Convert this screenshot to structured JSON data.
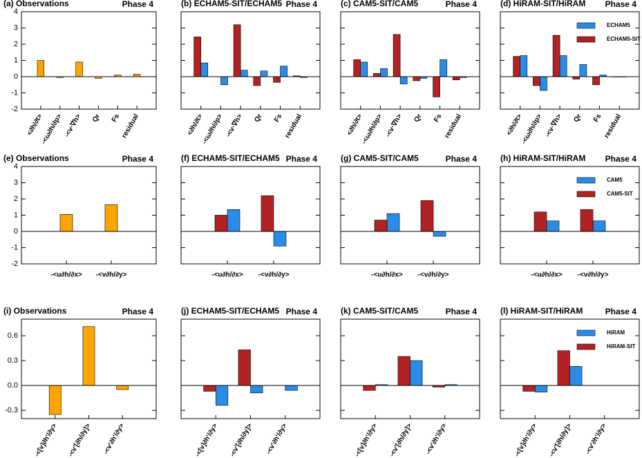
{
  "chart_data": [
    {
      "type": "bar",
      "title": "(a) Observations",
      "subtitle": "Phase 4",
      "categories": [
        "<∂h/∂t>",
        "-<ω∂h/∂p>",
        "-<v·∇h>",
        "Qr",
        "Fs",
        "residual"
      ],
      "series": [
        {
          "color": "#ffa500",
          "values": [
            1.0,
            -0.05,
            0.9,
            -0.1,
            0.1,
            0.15
          ]
        }
      ],
      "ylim": [
        -2,
        4
      ],
      "yticks": [
        -2,
        -1,
        0,
        1,
        2,
        3,
        4
      ]
    },
    {
      "type": "bar",
      "title": "(b) ECHAM5-SIT/ECHAM5",
      "subtitle": "Phase 4",
      "categories": [
        "<∂h/∂t>",
        "-<ω∂h/∂p>",
        "-<v·∇h>",
        "Qr",
        "Fs",
        "residual"
      ],
      "series": [
        {
          "color": "#2b8ce8",
          "values": [
            0.85,
            -0.5,
            0.4,
            0.35,
            0.65,
            -0.05
          ]
        },
        {
          "color": "#b22222",
          "values": [
            2.45,
            0.0,
            3.2,
            -0.55,
            -0.35,
            0.05
          ]
        }
      ],
      "ylim": [
        -2,
        4
      ]
    },
    {
      "type": "bar",
      "title": "(c) CAM5-SIT/CAM5",
      "subtitle": "Phase 4",
      "categories": [
        "<∂h/∂t>",
        "-<ω∂h/∂p>",
        "-<v·∇h>",
        "Qr",
        "Fs",
        "residual"
      ],
      "series": [
        {
          "color": "#2b8ce8",
          "values": [
            0.9,
            0.5,
            -0.45,
            -0.1,
            1.05,
            -0.05
          ]
        },
        {
          "color": "#b22222",
          "values": [
            1.05,
            0.2,
            2.6,
            -0.25,
            -1.25,
            -0.2
          ]
        }
      ],
      "ylim": [
        -2,
        4
      ]
    },
    {
      "type": "bar",
      "title": "(d) HiRAM-SIT/HiRAM",
      "subtitle": "Phase 4",
      "categories": [
        "<∂h/∂t>",
        "-<ω∂h/∂p>",
        "-<v·∇h>",
        "Qr",
        "Fs",
        "residual"
      ],
      "series": [
        {
          "name": "ECHAM5",
          "color": "#2b8ce8",
          "values": [
            1.3,
            -0.85,
            1.3,
            0.75,
            0.1,
            -0.02
          ]
        },
        {
          "name": "ECHAM5-SIT",
          "color": "#b22222",
          "values": [
            1.25,
            -0.55,
            2.55,
            -0.15,
            -0.5,
            -0.02
          ]
        }
      ],
      "ylim": [
        -2,
        4
      ],
      "legend": "upper right"
    },
    {
      "type": "bar",
      "title": "(e) Observations",
      "subtitle": "Phase 4",
      "categories": [
        "-<u∂h/∂x>",
        "-<v∂h/∂y>"
      ],
      "series": [
        {
          "color": "#ffa500",
          "values": [
            1.05,
            1.65
          ]
        }
      ],
      "ylim": [
        -2,
        4
      ],
      "yticks": [
        -2,
        -1,
        0,
        1,
        2,
        3,
        4
      ]
    },
    {
      "type": "bar",
      "title": "(f) ECHAM5-SIT/ECHAM5",
      "subtitle": "Phase 4",
      "categories": [
        "-<u∂h/∂x>",
        "-<v∂h/∂y>"
      ],
      "series": [
        {
          "color": "#2b8ce8",
          "values": [
            1.35,
            -0.9
          ]
        },
        {
          "color": "#b22222",
          "values": [
            1.0,
            2.2
          ]
        }
      ],
      "ylim": [
        -2,
        4
      ]
    },
    {
      "type": "bar",
      "title": "(g) CAM5-SIT/CAM5",
      "subtitle": "Phase 4",
      "categories": [
        "-<u∂h/∂x>",
        "-<v∂h/∂y>"
      ],
      "series": [
        {
          "color": "#2b8ce8",
          "values": [
            1.1,
            -0.3
          ]
        },
        {
          "color": "#b22222",
          "values": [
            0.7,
            1.9
          ]
        }
      ],
      "ylim": [
        -2,
        4
      ]
    },
    {
      "type": "bar",
      "title": "(h) HiRAM-SIT/HiRAM",
      "subtitle": "Phase 4",
      "categories": [
        "-<u∂h/∂x>",
        "-<v∂h/∂y>"
      ],
      "series": [
        {
          "name": "CAM5",
          "color": "#2b8ce8",
          "values": [
            0.65,
            0.65
          ]
        },
        {
          "name": "CAM5-SIT",
          "color": "#b22222",
          "values": [
            1.2,
            1.35
          ]
        }
      ],
      "ylim": [
        -2,
        4
      ],
      "legend": "upper right"
    },
    {
      "type": "bar",
      "title": "(i) Observations",
      "subtitle": "Phase 4",
      "categories": [
        "-<[v]∂h'/∂y>",
        "-<v'[∂h/∂y]>",
        "-<v'∂h'/∂y>"
      ],
      "series": [
        {
          "color": "#ffa500",
          "values": [
            -0.35,
            0.71,
            -0.05
          ]
        }
      ],
      "ylim": [
        -0.4,
        0.8
      ],
      "yticks": [
        -0.3,
        {
          "value": 0,
          "label": "0.0"
        },
        0.3,
        0.6
      ]
    },
    {
      "type": "bar",
      "title": "(j) ECHAM5-SIT/ECHAM5",
      "subtitle": "Phase 4",
      "categories": [
        "-<[v]∂h'/∂y>",
        "-<v'[∂h/∂y]>",
        "-<v'∂h'/∂y>"
      ],
      "series": [
        {
          "color": "#2b8ce8",
          "values": [
            -0.24,
            -0.09,
            -0.06
          ]
        },
        {
          "color": "#b22222",
          "values": [
            -0.07,
            0.43,
            0.0
          ]
        }
      ],
      "ylim": [
        -0.4,
        0.8
      ]
    },
    {
      "type": "bar",
      "title": "(k) CAM5-SIT/CAM5",
      "subtitle": "Phase 4",
      "categories": [
        "-<[v]∂h'/∂y>",
        "-<v'[∂h/∂y]>",
        "-<v'∂h'/∂y>"
      ],
      "series": [
        {
          "color": "#2b8ce8",
          "values": [
            0.01,
            0.3,
            0.01
          ]
        },
        {
          "color": "#b22222",
          "values": [
            -0.06,
            0.35,
            -0.02
          ]
        }
      ],
      "ylim": [
        -0.4,
        0.8
      ]
    },
    {
      "type": "bar",
      "title": "(l) HiRAM-SIT/HiRAM",
      "subtitle": "Phase 4",
      "categories": [
        "-<[v]∂h'/∂y>",
        "-<v'[∂h/∂y]>",
        "-<v'∂h'/∂y>"
      ],
      "series": [
        {
          "name": "HiRAM",
          "color": "#2b8ce8",
          "values": [
            -0.08,
            0.23,
            0.0
          ]
        },
        {
          "name": "HiRAM-SIT",
          "color": "#b22222",
          "values": [
            -0.07,
            0.42,
            0.0
          ]
        }
      ],
      "ylim": [
        -0.4,
        0.8
      ],
      "legend": "upper right"
    }
  ]
}
